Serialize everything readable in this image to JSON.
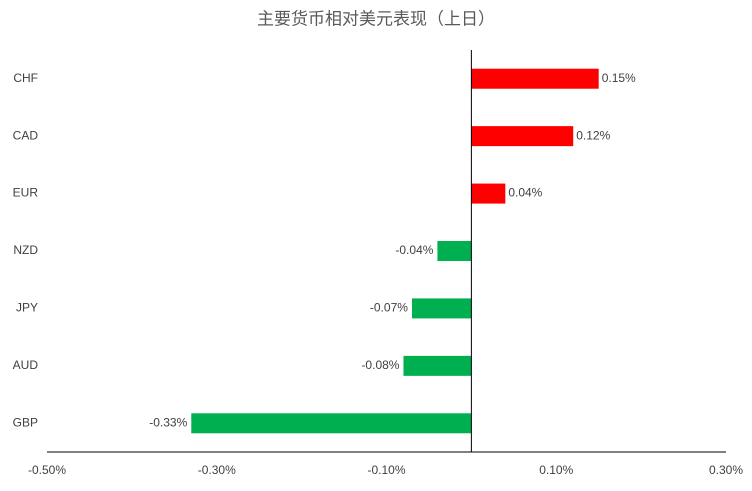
{
  "chart_data": {
    "type": "hbar",
    "title": "主要货币相对美元表现（上日）",
    "categories": [
      "CHF",
      "CAD",
      "EUR",
      "NZD",
      "JPY",
      "AUD",
      "GBP"
    ],
    "values": [
      0.15,
      0.12,
      0.04,
      -0.04,
      -0.07,
      -0.08,
      -0.33
    ],
    "value_labels": [
      "0.15%",
      "0.12%",
      "0.04%",
      "-0.04%",
      "-0.07%",
      "-0.08%",
      "-0.33%"
    ],
    "positive_color": "#ff0000",
    "negative_color": "#00b050",
    "xlim": [
      -0.5,
      0.3
    ],
    "xticks": [
      {
        "value": -0.5,
        "label": "-0.50%"
      },
      {
        "value": -0.3,
        "label": "-0.30%"
      },
      {
        "value": -0.1,
        "label": "-0.10%"
      },
      {
        "value": 0.1,
        "label": "0.10%"
      },
      {
        "value": 0.3,
        "label": "0.30%"
      }
    ],
    "grid": false
  }
}
